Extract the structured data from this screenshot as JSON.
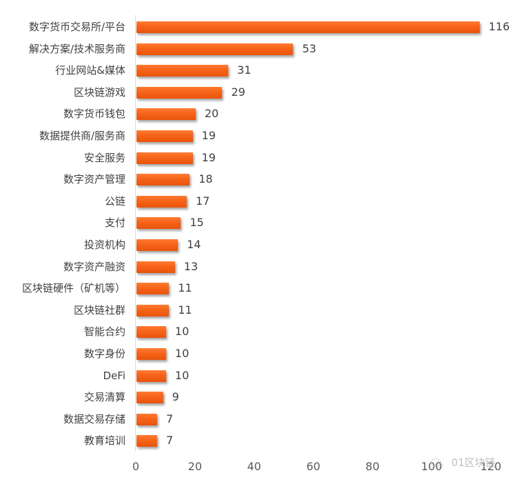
{
  "chart_data": {
    "type": "bar",
    "orientation": "horizontal",
    "title": "",
    "xlabel": "",
    "ylabel": "",
    "xlim": [
      0,
      120
    ],
    "x_ticks": [
      0,
      20,
      40,
      60,
      80,
      100,
      120
    ],
    "grid": false,
    "legend": null,
    "bar_color": "#f26522",
    "categories": [
      "数字货币交易所/平台",
      "解决方案/技术服务商",
      "行业网站&媒体",
      "区块链游戏",
      "数字货币钱包",
      "数据提供商/服务商",
      "安全服务",
      "数字资产管理",
      "公链",
      "支付",
      "投资机构",
      "数字资产融资",
      "区块链硬件（矿机等）",
      "区块链社群",
      "智能合约",
      "数字身份",
      "DeFi",
      "交易清算",
      "数据交易存储",
      "教育培训"
    ],
    "values": [
      116,
      53,
      31,
      29,
      20,
      19,
      19,
      18,
      17,
      15,
      14,
      13,
      11,
      11,
      10,
      10,
      10,
      9,
      7,
      7
    ]
  },
  "watermark": {
    "icon": "wechat-icon",
    "text": "01区块链"
  }
}
